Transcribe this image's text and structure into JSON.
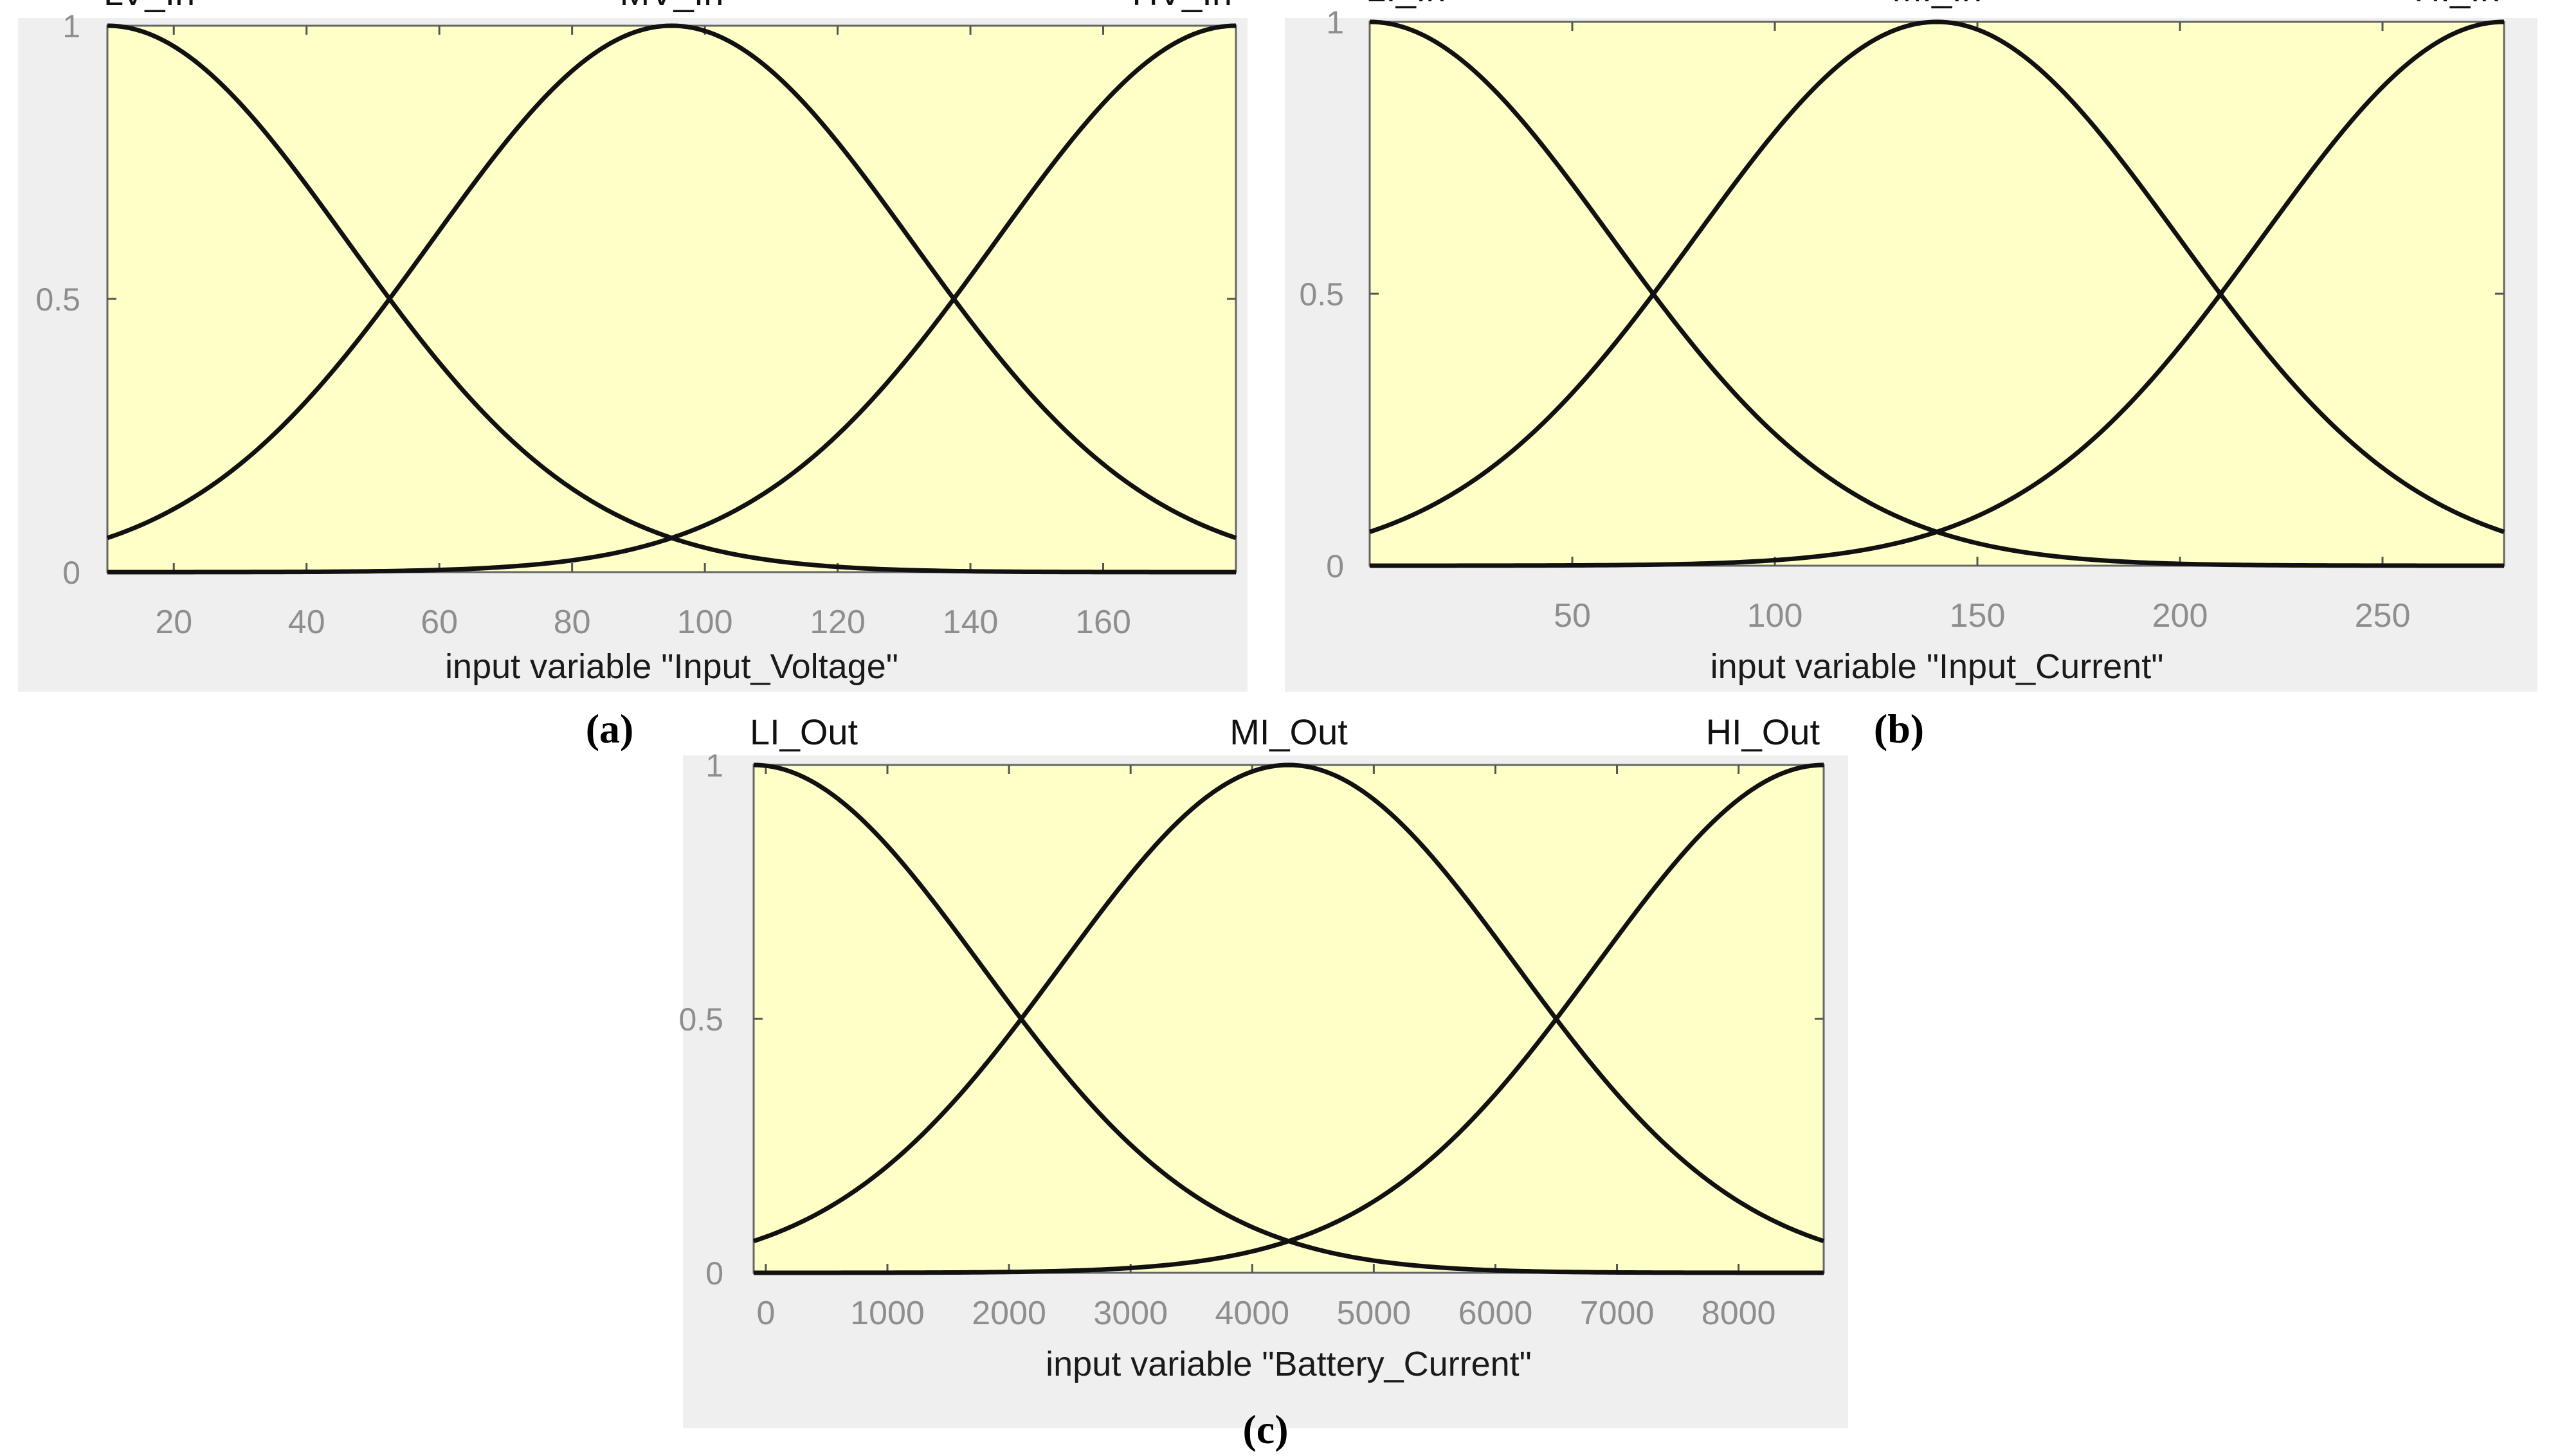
{
  "figure_panels": [
    {
      "caption_letter": "a",
      "chart_data": {
        "type": "line",
        "xlabel": "input variable \"Input_Voltage\"",
        "xlim": [
          10,
          180
        ],
        "ylim": [
          0,
          1
        ],
        "xticks": [
          20,
          40,
          60,
          80,
          100,
          120,
          140,
          160
        ],
        "yticks": [
          0,
          0.5,
          1
        ],
        "grid": false,
        "series": [
          {
            "name": "LV_In",
            "shape": "gaussian",
            "center": 10,
            "sigma": 36.1
          },
          {
            "name": "MV_In",
            "shape": "gaussian",
            "center": 95,
            "sigma": 36.1
          },
          {
            "name": "HV_In",
            "shape": "gaussian",
            "center": 180,
            "sigma": 36.1
          }
        ]
      }
    },
    {
      "caption_letter": "b",
      "chart_data": {
        "type": "line",
        "xlabel": "input variable \"Input_Current\"",
        "xlim": [
          0,
          280
        ],
        "ylim": [
          0,
          1
        ],
        "xticks": [
          50,
          100,
          150,
          200,
          250
        ],
        "yticks": [
          0,
          0.5,
          1
        ],
        "grid": false,
        "series": [
          {
            "name": "LI_In",
            "shape": "gaussian",
            "center": 0,
            "sigma": 59.4
          },
          {
            "name": "MI_In",
            "shape": "gaussian",
            "center": 140,
            "sigma": 59.4
          },
          {
            "name": "HI_In",
            "shape": "gaussian",
            "center": 280,
            "sigma": 59.4
          }
        ]
      }
    },
    {
      "caption_letter": "c",
      "chart_data": {
        "type": "line",
        "xlabel": "input variable \"Battery_Current\"",
        "xlim": [
          -100,
          8700
        ],
        "ylim": [
          0,
          1
        ],
        "xticks": [
          0,
          1000,
          2000,
          3000,
          4000,
          5000,
          6000,
          7000,
          8000
        ],
        "yticks": [
          0,
          0.5,
          1
        ],
        "grid": false,
        "series": [
          {
            "name": "LI_Out",
            "shape": "gaussian",
            "center": -100,
            "sigma": 1868
          },
          {
            "name": "MI_Out",
            "shape": "gaussian",
            "center": 4300,
            "sigma": 1868
          },
          {
            "name": "HI_Out",
            "shape": "gaussian",
            "center": 8700,
            "sigma": 1868
          }
        ]
      }
    }
  ],
  "colors": {
    "plot_background": "#ffffc8",
    "panel_background": "#efefef",
    "curve": "#111111",
    "tick_text": "#8e8e8e"
  }
}
